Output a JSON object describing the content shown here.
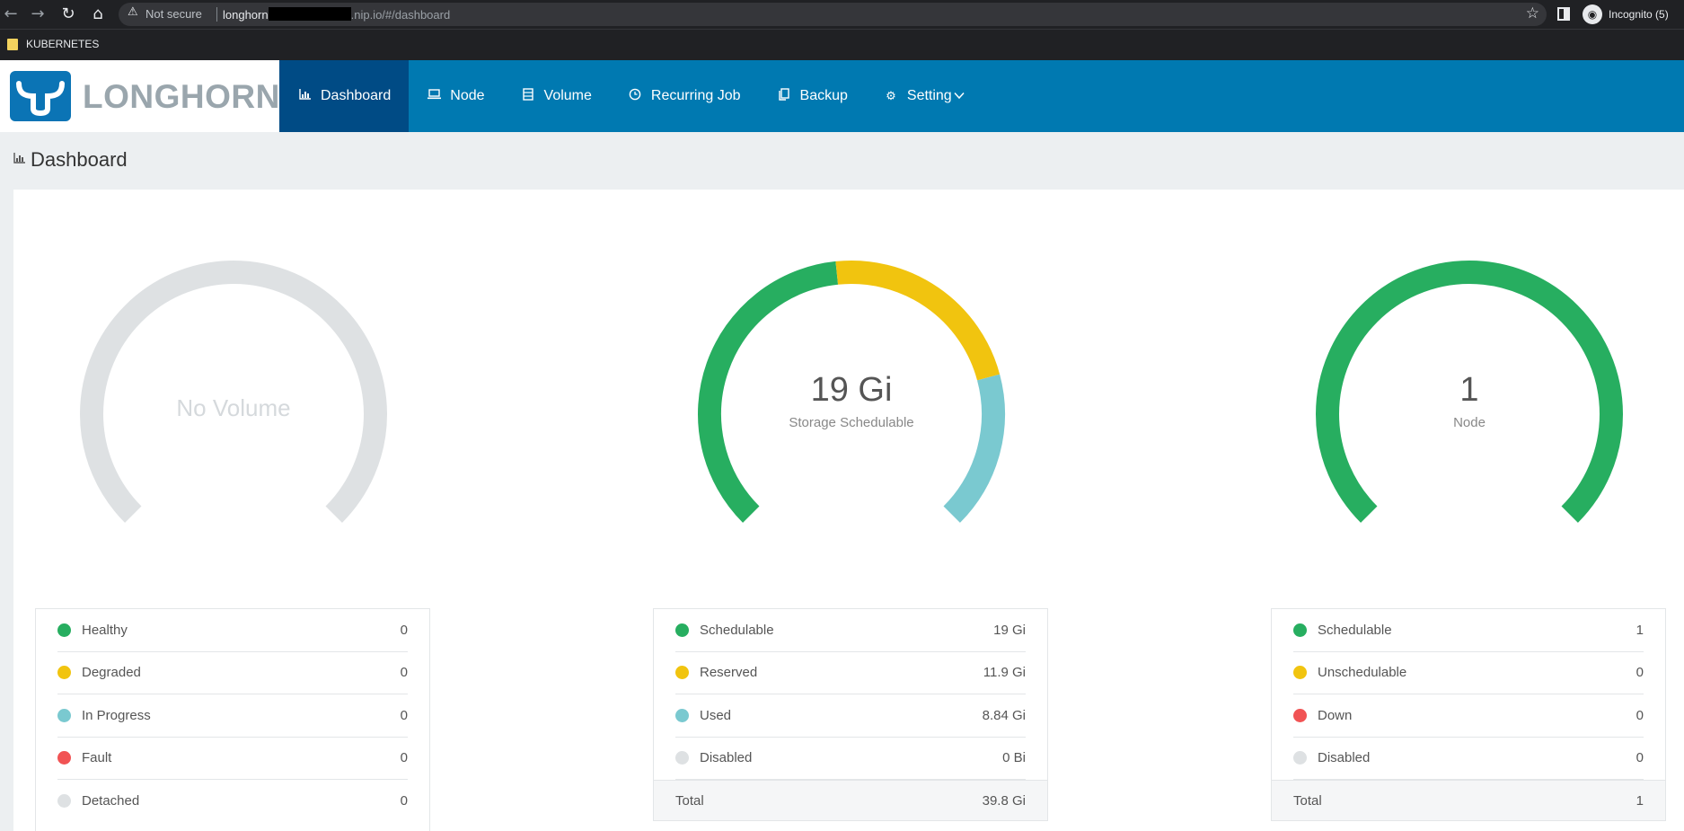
{
  "browser": {
    "security_label": "Not secure",
    "url_host": "longhorn",
    "url_rest": ".nip.io/#/dashboard",
    "profile_label": "Incognito (5)",
    "bookmark_folder": "KUBERNETES"
  },
  "app": {
    "logo_text": "LONGHORN",
    "nav": [
      {
        "label": "Dashboard",
        "icon": "bar-chart-icon",
        "active": true
      },
      {
        "label": "Node",
        "icon": "laptop-icon"
      },
      {
        "label": "Volume",
        "icon": "volume-icon"
      },
      {
        "label": "Recurring Job",
        "icon": "clock-icon"
      },
      {
        "label": "Backup",
        "icon": "copy-icon"
      },
      {
        "label": "Setting",
        "icon": "gear-icon"
      }
    ]
  },
  "page": {
    "title": "Dashboard"
  },
  "colors": {
    "green": "#27ae60",
    "yellow": "#f1c40f",
    "teal": "#7ac9d0",
    "red": "#f15354",
    "grey": "#dee1e3"
  },
  "volume": {
    "center_text": "No Volume",
    "rows": [
      {
        "label": "Healthy",
        "value": "0",
        "color": "#27ae60"
      },
      {
        "label": "Degraded",
        "value": "0",
        "color": "#f1c40f"
      },
      {
        "label": "In Progress",
        "value": "0",
        "color": "#7ac9d0"
      },
      {
        "label": "Fault",
        "value": "0",
        "color": "#f15354"
      },
      {
        "label": "Detached",
        "value": "0",
        "color": "#dee1e3"
      }
    ]
  },
  "storage": {
    "center_value": "19 Gi",
    "center_label": "Storage Schedulable",
    "rows": [
      {
        "label": "Schedulable",
        "value": "19 Gi",
        "color": "#27ae60",
        "amount": 19
      },
      {
        "label": "Reserved",
        "value": "11.9 Gi",
        "color": "#f1c40f",
        "amount": 11.9
      },
      {
        "label": "Used",
        "value": "8.84 Gi",
        "color": "#7ac9d0",
        "amount": 8.84
      },
      {
        "label": "Disabled",
        "value": "0 Bi",
        "color": "#dee1e3",
        "amount": 0
      }
    ],
    "total_label": "Total",
    "total_value": "39.8 Gi"
  },
  "node": {
    "center_value": "1",
    "center_label": "Node",
    "rows": [
      {
        "label": "Schedulable",
        "value": "1",
        "color": "#27ae60",
        "amount": 1
      },
      {
        "label": "Unschedulable",
        "value": "0",
        "color": "#f1c40f",
        "amount": 0
      },
      {
        "label": "Down",
        "value": "0",
        "color": "#f15354",
        "amount": 0
      },
      {
        "label": "Disabled",
        "value": "0",
        "color": "#dee1e3",
        "amount": 0
      }
    ],
    "total_label": "Total",
    "total_value": "1"
  }
}
